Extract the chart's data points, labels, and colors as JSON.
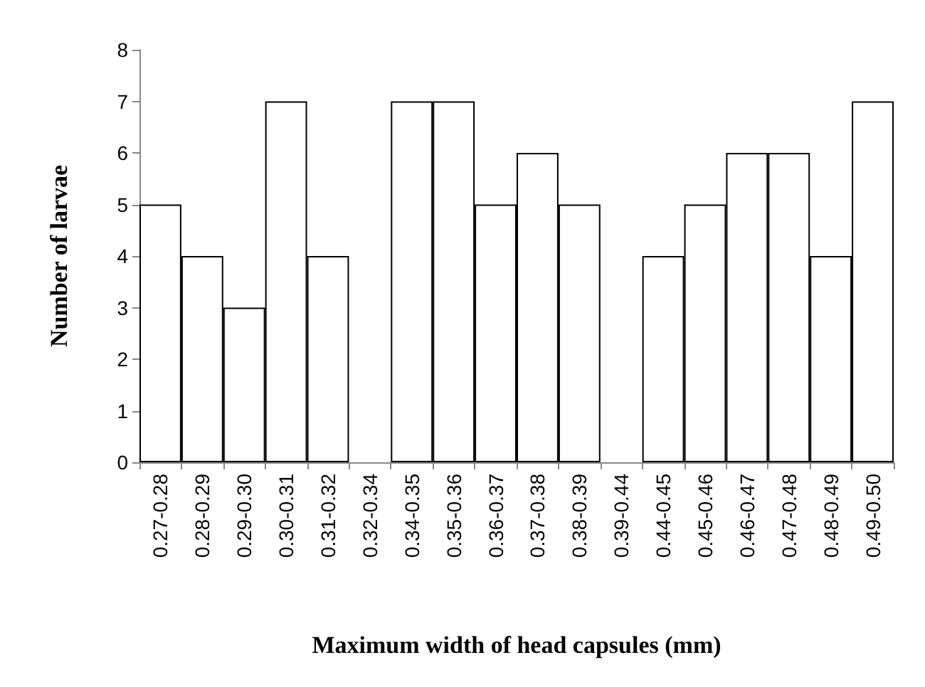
{
  "chart_data": {
    "type": "bar",
    "xlabel": "Maximum width of head capsules (mm)",
    "ylabel": "Number of larvae",
    "categories": [
      "0.27-0.28",
      "0.28-0.29",
      "0.29-0.30",
      "0.30-0.31",
      "0.31-0.32",
      "0.32-0.34",
      "0.34-0.35",
      "0.35-0.36",
      "0.36-0.37",
      "0.37-0.38",
      "0.38-0.39",
      "0.39-0.44",
      "0.44-0.45",
      "0.45-0.46",
      "0.46-0.47",
      "0.47-0.48",
      "0.48-0.49",
      "0.49-0.50"
    ],
    "values": [
      5,
      4,
      3,
      7,
      4,
      0,
      7,
      7,
      5,
      6,
      5,
      0,
      4,
      5,
      6,
      6,
      4,
      7
    ],
    "color": "#ffffff",
    "ylim": [
      0,
      8
    ],
    "yticks": [
      0,
      1,
      2,
      3,
      4,
      5,
      6,
      7,
      8
    ],
    "grid": false
  }
}
